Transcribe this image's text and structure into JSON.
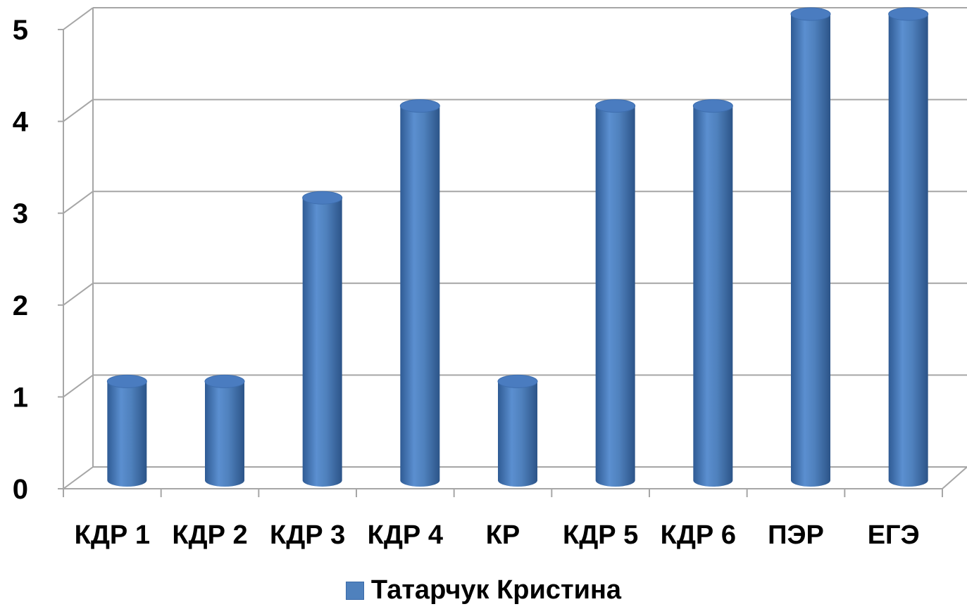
{
  "chart_data": {
    "type": "bar",
    "categories": [
      "КДР 1",
      "КДР 2",
      "КДР 3",
      "КДР 4",
      "КР",
      "КДР 5",
      "КДР 6",
      "ПЭР",
      "ЕГЭ"
    ],
    "series": [
      {
        "name": "Татарчук Кристина",
        "values": [
          1,
          1,
          3,
          4,
          1,
          4,
          4,
          5,
          5
        ]
      }
    ],
    "yticks": [
      "0",
      "1",
      "2",
      "3",
      "4",
      "5"
    ],
    "ylim": [
      0,
      5
    ],
    "grid": true,
    "legend_position": "bottom",
    "color": "#4f81bd"
  }
}
